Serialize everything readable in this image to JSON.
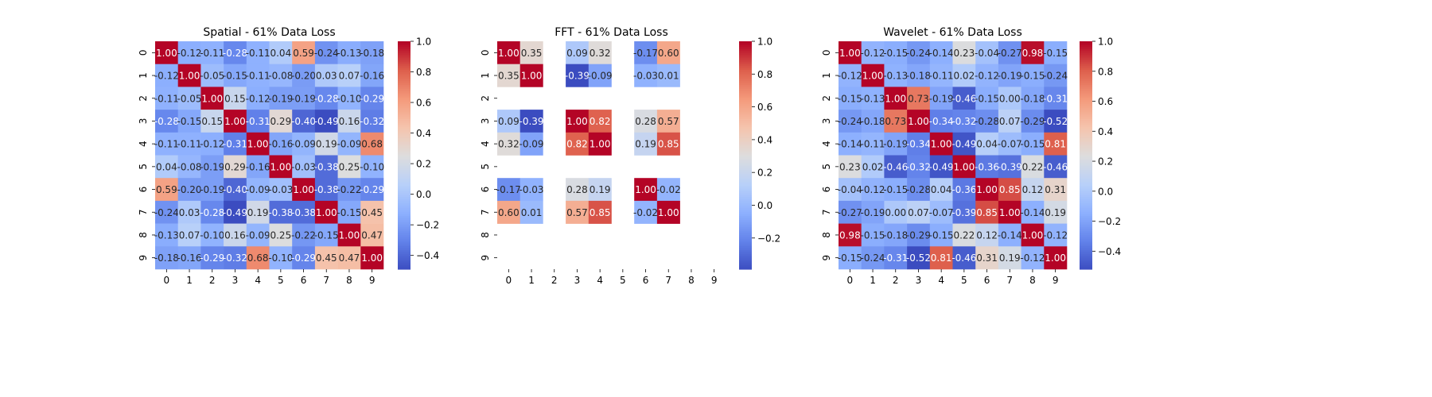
{
  "chart_data": [
    {
      "type": "heatmap",
      "title": "Spatial - 61% Data Loss",
      "x": [
        "0",
        "1",
        "2",
        "3",
        "4",
        "5",
        "6",
        "7",
        "8",
        "9"
      ],
      "y": [
        "0",
        "1",
        "2",
        "3",
        "4",
        "5",
        "6",
        "7",
        "8",
        "9"
      ],
      "cbar_ticks": [
        -0.4,
        -0.2,
        0.0,
        0.2,
        0.4,
        0.6,
        0.8,
        1.0
      ],
      "vmin": -0.49,
      "vmax": 1.0,
      "values": [
        [
          1.0,
          -0.12,
          -0.11,
          -0.28,
          -0.11,
          0.04,
          0.59,
          -0.24,
          -0.13,
          -0.18
        ],
        [
          -0.12,
          1.0,
          -0.05,
          -0.15,
          -0.11,
          -0.08,
          -0.2,
          0.03,
          0.07,
          -0.16
        ],
        [
          -0.11,
          -0.05,
          1.0,
          0.15,
          -0.12,
          -0.19,
          -0.19,
          -0.28,
          -0.1,
          -0.29
        ],
        [
          -0.28,
          -0.15,
          0.15,
          1.0,
          -0.31,
          0.29,
          -0.4,
          -0.49,
          0.16,
          -0.32
        ],
        [
          -0.11,
          -0.11,
          -0.12,
          -0.31,
          1.0,
          -0.16,
          -0.09,
          0.19,
          -0.09,
          0.68
        ],
        [
          0.04,
          -0.08,
          -0.19,
          0.29,
          -0.16,
          1.0,
          -0.03,
          -0.38,
          0.25,
          -0.1
        ],
        [
          0.59,
          -0.2,
          -0.19,
          -0.4,
          -0.09,
          -0.03,
          1.0,
          -0.38,
          -0.22,
          -0.29
        ],
        [
          -0.24,
          0.03,
          -0.28,
          -0.49,
          0.19,
          -0.38,
          -0.38,
          1.0,
          -0.15,
          0.45
        ],
        [
          -0.13,
          0.07,
          -0.1,
          0.16,
          -0.09,
          0.25,
          -0.22,
          -0.15,
          1.0,
          0.47
        ],
        [
          -0.18,
          -0.16,
          -0.29,
          -0.32,
          0.68,
          -0.1,
          -0.29,
          0.45,
          0.47,
          1.0
        ]
      ]
    },
    {
      "type": "heatmap",
      "title": "FFT - 61% Data Loss",
      "x": [
        "0",
        "1",
        "2",
        "3",
        "4",
        "5",
        "6",
        "7",
        "8",
        "9"
      ],
      "y": [
        "0",
        "1",
        "2",
        "3",
        "4",
        "5",
        "6",
        "7",
        "8",
        "9"
      ],
      "cbar_ticks": [
        -0.2,
        0.0,
        0.2,
        0.4,
        0.6,
        0.8,
        1.0
      ],
      "vmin": -0.39,
      "vmax": 1.0,
      "values": [
        [
          1.0,
          0.35,
          null,
          0.09,
          0.32,
          null,
          -0.17,
          0.6,
          null,
          null
        ],
        [
          0.35,
          1.0,
          null,
          -0.39,
          -0.09,
          null,
          -0.03,
          0.01,
          null,
          null
        ],
        [
          null,
          null,
          null,
          null,
          null,
          null,
          null,
          null,
          null,
          null
        ],
        [
          0.09,
          -0.39,
          null,
          1.0,
          0.82,
          null,
          0.28,
          0.57,
          null,
          null
        ],
        [
          0.32,
          -0.09,
          null,
          0.82,
          1.0,
          null,
          0.19,
          0.85,
          null,
          null
        ],
        [
          null,
          null,
          null,
          null,
          null,
          null,
          null,
          null,
          null,
          null
        ],
        [
          -0.17,
          -0.03,
          null,
          0.28,
          0.19,
          null,
          1.0,
          -0.02,
          null,
          null
        ],
        [
          0.6,
          0.01,
          null,
          0.57,
          0.85,
          null,
          -0.02,
          1.0,
          null,
          null
        ],
        [
          null,
          null,
          null,
          null,
          null,
          null,
          null,
          null,
          null,
          null
        ],
        [
          null,
          null,
          null,
          null,
          null,
          null,
          null,
          null,
          null,
          null
        ]
      ]
    },
    {
      "type": "heatmap",
      "title": "Wavelet - 61% Data Loss",
      "x": [
        "0",
        "1",
        "2",
        "3",
        "4",
        "5",
        "6",
        "7",
        "8",
        "9"
      ],
      "y": [
        "0",
        "1",
        "2",
        "3",
        "4",
        "5",
        "6",
        "7",
        "8",
        "9"
      ],
      "cbar_ticks": [
        -0.4,
        -0.2,
        0.0,
        0.2,
        0.4,
        0.6,
        0.8,
        1.0
      ],
      "vmin": -0.52,
      "vmax": 1.0,
      "values": [
        [
          1.0,
          -0.12,
          -0.15,
          -0.24,
          -0.14,
          0.23,
          -0.04,
          -0.27,
          0.98,
          -0.15
        ],
        [
          -0.12,
          1.0,
          -0.13,
          -0.18,
          -0.11,
          0.02,
          -0.12,
          -0.19,
          -0.15,
          -0.24
        ],
        [
          -0.15,
          -0.13,
          1.0,
          0.73,
          -0.19,
          -0.46,
          -0.15,
          -0.0,
          -0.18,
          -0.31
        ],
        [
          -0.24,
          -0.18,
          0.73,
          1.0,
          -0.34,
          -0.32,
          -0.28,
          0.07,
          -0.29,
          -0.52
        ],
        [
          -0.14,
          -0.11,
          -0.19,
          -0.34,
          1.0,
          -0.49,
          0.04,
          -0.07,
          -0.15,
          0.81
        ],
        [
          0.23,
          0.02,
          -0.46,
          -0.32,
          -0.49,
          1.0,
          -0.36,
          -0.39,
          0.22,
          -0.46
        ],
        [
          -0.04,
          -0.12,
          -0.15,
          -0.28,
          0.04,
          -0.36,
          1.0,
          0.85,
          0.12,
          0.31
        ],
        [
          -0.27,
          -0.19,
          -0.0,
          0.07,
          -0.07,
          -0.39,
          0.85,
          1.0,
          -0.14,
          0.19
        ],
        [
          0.98,
          -0.15,
          -0.18,
          -0.29,
          -0.15,
          0.22,
          0.12,
          -0.14,
          1.0,
          -0.12
        ],
        [
          -0.15,
          -0.24,
          -0.31,
          -0.52,
          0.81,
          -0.46,
          0.31,
          0.19,
          -0.12,
          1.0
        ]
      ]
    }
  ]
}
